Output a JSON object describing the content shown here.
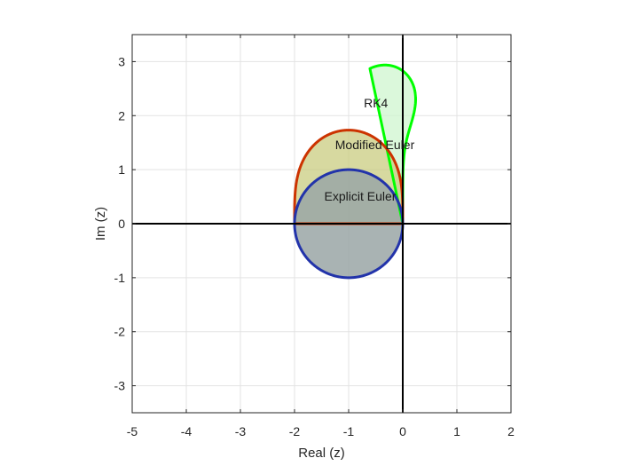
{
  "chart_data": {
    "type": "line",
    "title": "",
    "xlabel": "Real (z)",
    "ylabel": "Im (z)",
    "xlim": [
      -5,
      2
    ],
    "ylim": [
      -3.5,
      3.5
    ],
    "xticks": [
      -5,
      -4,
      -3,
      -2,
      -1,
      0,
      1,
      2
    ],
    "yticks": [
      -3,
      -2,
      -1,
      0,
      1,
      2,
      3
    ],
    "grid": true,
    "box": true,
    "series": [
      {
        "name": "RK4",
        "kind": "stability-boundary",
        "order": 4,
        "color": "#00ff00",
        "fill": "#ccf5cc",
        "fill_opacity": 0.7
      },
      {
        "name": "Modified Euler",
        "kind": "stability-boundary",
        "order": 2,
        "color": "#cc3300",
        "fill": "#c9cc80",
        "fill_opacity": 0.75
      },
      {
        "name": "Explicit Euler",
        "kind": "stability-boundary",
        "order": 1,
        "color": "#2233aa",
        "fill": "#9aa6a6",
        "fill_opacity": 0.85
      }
    ],
    "reference_lines": [
      {
        "orientation": "horizontal",
        "value": 0,
        "color": "#000000"
      },
      {
        "orientation": "vertical",
        "value": 0,
        "color": "#000000"
      }
    ],
    "annotations": [
      {
        "text": "RK4",
        "x": -0.72,
        "y": 2.15
      },
      {
        "text": "Modified Euler",
        "x": -1.25,
        "y": 1.38
      },
      {
        "text": "Explicit Euler",
        "x": -1.45,
        "y": 0.43
      }
    ]
  }
}
